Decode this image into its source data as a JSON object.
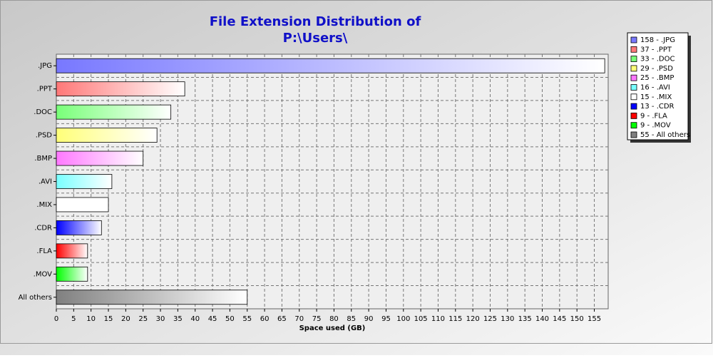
{
  "chart_data": {
    "type": "bar",
    "orientation": "horizontal",
    "title": [
      "File Extension Distribution of",
      "P:\\Users\\"
    ],
    "xlabel": "Space used (GB)",
    "categories": [
      ".JPG",
      ".PPT",
      ".DOC",
      ".PSD",
      ".BMP",
      ".AVI",
      ".MIX",
      ".CDR",
      ".FLA",
      ".MOV",
      "All others"
    ],
    "values": [
      158,
      37,
      33,
      29,
      25,
      16,
      15,
      13,
      9,
      9,
      55
    ],
    "colors": [
      "#7878ff",
      "#ff7878",
      "#78ff78",
      "#ffff78",
      "#ff78ff",
      "#78ffff",
      "#ffffff",
      "#0000ff",
      "#ff0000",
      "#00ff00",
      "#808080"
    ],
    "legend": [
      "158 - .JPG",
      "37 - .PPT",
      "33 - .DOC",
      "29 - .PSD",
      "25 - .BMP",
      "16 - .AVI",
      "15 - .MIX",
      "13 - .CDR",
      "9 - .FLA",
      "9 - .MOV",
      "55 - All others"
    ],
    "legend_position": "upper right",
    "xlim": [
      0,
      159
    ],
    "xticks": [
      0,
      5,
      10,
      15,
      20,
      25,
      30,
      35,
      40,
      45,
      50,
      55,
      60,
      65,
      70,
      75,
      80,
      85,
      90,
      95,
      100,
      105,
      110,
      115,
      120,
      125,
      130,
      135,
      140,
      145,
      150,
      155
    ],
    "grid": true
  }
}
